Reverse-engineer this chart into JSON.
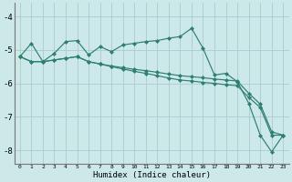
{
  "xlabel": "Humidex (Indice chaleur)",
  "background_color": "#cce8e8",
  "grid_color": "#aacccc",
  "line_color": "#2e7f72",
  "xlim": [
    -0.5,
    23.5
  ],
  "ylim": [
    -8.4,
    -3.6
  ],
  "yticks": [
    -8,
    -7,
    -6,
    -5,
    -4
  ],
  "xticks": [
    0,
    1,
    2,
    3,
    4,
    5,
    6,
    7,
    8,
    9,
    10,
    11,
    12,
    13,
    14,
    15,
    16,
    17,
    18,
    19,
    20,
    21,
    22,
    23
  ],
  "line1_x": [
    0,
    1,
    2,
    3,
    4,
    5,
    6,
    7,
    8,
    9,
    10,
    11,
    12,
    13,
    14,
    15,
    16,
    17,
    18,
    19,
    20,
    21,
    22,
    23
  ],
  "line1_y": [
    -5.2,
    -4.8,
    -5.35,
    -5.1,
    -4.75,
    -4.72,
    -5.15,
    -4.9,
    -5.05,
    -4.85,
    -4.8,
    -4.75,
    -4.72,
    -4.65,
    -4.6,
    -4.35,
    -4.95,
    -5.75,
    -5.7,
    -5.95,
    -6.6,
    -7.55,
    -8.05,
    -7.55
  ],
  "line2_x": [
    0,
    1,
    2,
    3,
    4,
    5,
    6,
    7,
    8,
    9,
    10,
    11,
    12,
    13,
    14,
    15,
    16,
    17,
    18,
    19,
    20,
    21,
    22,
    23
  ],
  "line2_y": [
    -5.2,
    -5.35,
    -5.35,
    -5.3,
    -5.25,
    -5.2,
    -5.35,
    -5.42,
    -5.48,
    -5.53,
    -5.58,
    -5.62,
    -5.67,
    -5.72,
    -5.77,
    -5.8,
    -5.83,
    -5.87,
    -5.9,
    -5.93,
    -6.3,
    -6.62,
    -7.45,
    -7.55
  ],
  "line3_x": [
    0,
    1,
    2,
    3,
    4,
    5,
    6,
    7,
    8,
    9,
    10,
    11,
    12,
    13,
    14,
    15,
    16,
    17,
    18,
    19,
    20,
    21,
    22,
    23
  ],
  "line3_y": [
    -5.2,
    -5.35,
    -5.35,
    -5.3,
    -5.25,
    -5.2,
    -5.35,
    -5.42,
    -5.5,
    -5.57,
    -5.64,
    -5.7,
    -5.77,
    -5.84,
    -5.9,
    -5.93,
    -5.97,
    -6.0,
    -6.04,
    -6.07,
    -6.42,
    -6.72,
    -7.55,
    -7.55
  ]
}
